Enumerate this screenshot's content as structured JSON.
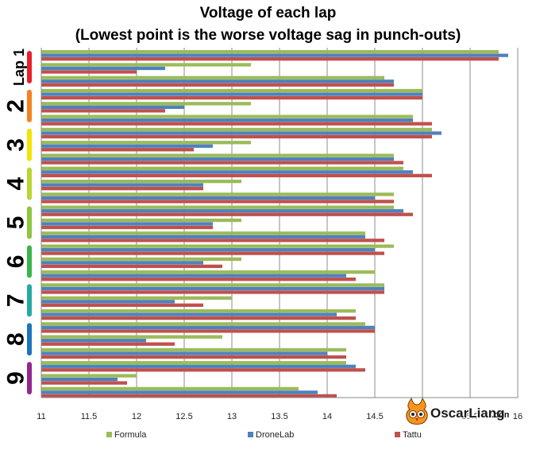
{
  "chart_data": {
    "type": "bar",
    "orientation": "horizontal",
    "title": "Voltage of each lap",
    "subtitle": "(Lowest point is the worse voltage sag in punch-outs)",
    "xlim": [
      11,
      16
    ],
    "x_ticks": [
      "11",
      "11.5",
      "12",
      "12.5",
      "13",
      "13.5",
      "14",
      "14.5",
      "15",
      "15.5",
      "16"
    ],
    "grid": "vertical",
    "legend_position": "bottom",
    "legend": [
      "Formula",
      "DroneLab",
      "Tattu"
    ],
    "colors": {
      "Formula": "#9bbb59",
      "DroneLab": "#4f81bd",
      "Tattu": "#c0504d"
    },
    "laps": [
      {
        "label": "Lap 1",
        "color": "#e8202a",
        "groups": [
          {
            "values": [
              15.8,
              15.9,
              15.8
            ]
          },
          {
            "values": [
              13.2,
              12.3,
              12.0
            ]
          },
          {
            "values": [
              14.6,
              14.7,
              14.7
            ]
          }
        ]
      },
      {
        "label": "2",
        "color": "#f58220",
        "groups": [
          {
            "values": [
              15.0,
              15.0,
              15.0
            ]
          },
          {
            "values": [
              13.2,
              12.5,
              12.3
            ]
          },
          {
            "values": [
              14.9,
              14.9,
              15.1
            ]
          }
        ]
      },
      {
        "label": "3",
        "color": "#f2e400",
        "groups": [
          {
            "values": [
              15.1,
              15.2,
              15.1
            ]
          },
          {
            "values": [
              13.2,
              12.8,
              12.6
            ]
          },
          {
            "values": [
              14.7,
              14.7,
              14.8
            ]
          }
        ]
      },
      {
        "label": "4",
        "color": "#b9d531",
        "groups": [
          {
            "values": [
              14.8,
              14.9,
              15.1
            ]
          },
          {
            "values": [
              13.1,
              12.7,
              12.7
            ]
          },
          {
            "values": [
              14.7,
              14.5,
              14.7
            ]
          }
        ]
      },
      {
        "label": "5",
        "color": "#8dc63f",
        "groups": [
          {
            "values": [
              14.7,
              14.8,
              14.9
            ]
          },
          {
            "values": [
              13.1,
              12.8,
              12.8
            ]
          },
          {
            "values": [
              14.4,
              14.4,
              14.6
            ]
          }
        ]
      },
      {
        "label": "6",
        "color": "#39b54a",
        "groups": [
          {
            "values": [
              14.7,
              14.5,
              14.6
            ]
          },
          {
            "values": [
              13.1,
              12.7,
              12.9
            ]
          },
          {
            "values": [
              14.5,
              14.2,
              14.3
            ]
          }
        ]
      },
      {
        "label": "7",
        "color": "#26a9a3",
        "groups": [
          {
            "values": [
              14.6,
              14.6,
              14.6
            ]
          },
          {
            "values": [
              13.0,
              12.4,
              12.7
            ]
          },
          {
            "values": [
              14.3,
              14.1,
              14.3
            ]
          }
        ]
      },
      {
        "label": "8",
        "color": "#1b75bc",
        "groups": [
          {
            "values": [
              14.4,
              14.5,
              14.5
            ]
          },
          {
            "values": [
              12.9,
              12.1,
              12.4
            ]
          },
          {
            "values": [
              14.2,
              14.0,
              14.2
            ]
          }
        ]
      },
      {
        "label": "9",
        "color": "#92278f",
        "groups": [
          {
            "values": [
              14.2,
              14.3,
              14.4
            ]
          },
          {
            "values": [
              12.0,
              11.8,
              11.9
            ]
          },
          {
            "values": [
              13.7,
              13.9,
              14.1
            ]
          }
        ]
      }
    ]
  },
  "watermark": {
    "brand": "OscarLiang",
    "suffix": ".com",
    "icon": "owl-mascot-icon"
  }
}
